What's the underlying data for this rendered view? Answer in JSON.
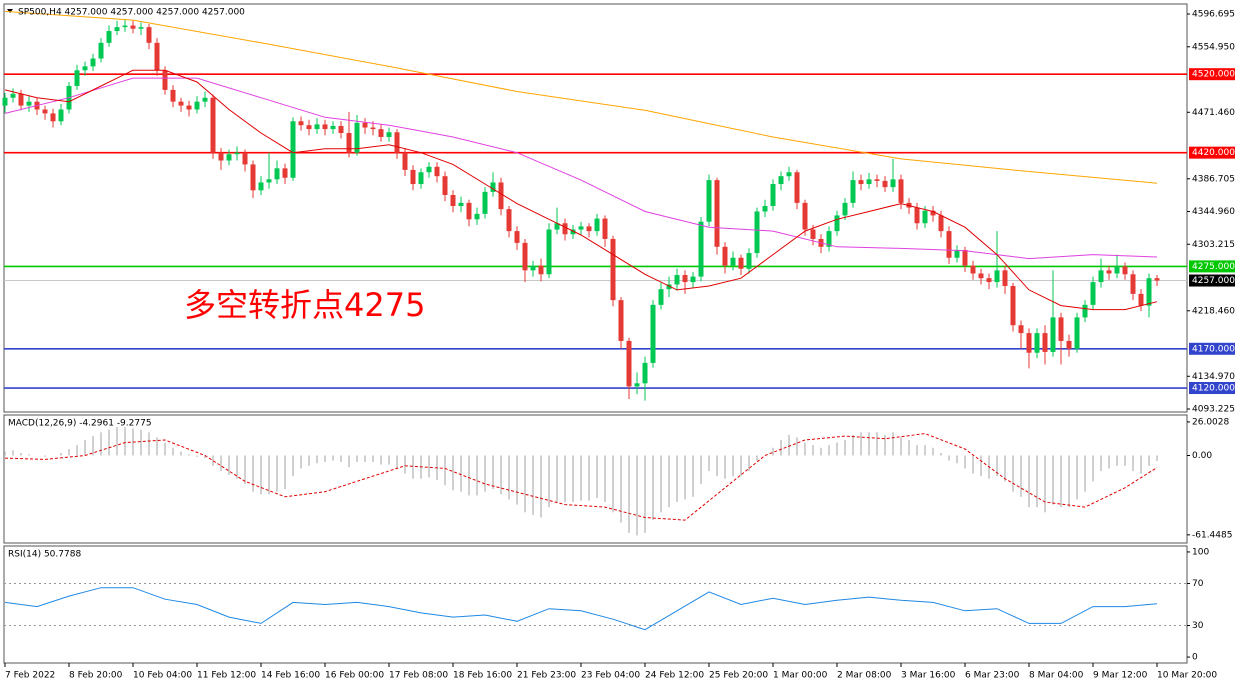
{
  "chart_data": [
    {
      "type": "candlestick",
      "title": "SP500,H4  4257.000 4257.000 4257.000 4257.000",
      "xlim": [
        -0.125,
        147.75
      ],
      "ylim": [
        4090.7,
        4608.2
      ],
      "yticks": [
        4596.695,
        {
          "value": 4554.95,
          "label": "4554.950"
        },
        {
          "value": 4471.46,
          "label": "4471.460"
        },
        4386.705,
        {
          "value": 4344.96,
          "label": "4344.960"
        },
        4303.215,
        {
          "value": 4218.46,
          "label": "4218.460"
        },
        {
          "value": 4134.97,
          "label": "4134.970"
        },
        4093.225
      ],
      "up_color": "#00c853",
      "down_color": "#e53935",
      "open": [
        4480,
        4490,
        4495,
        4480,
        4485,
        4475,
        4470,
        4460,
        4475,
        4505,
        4525,
        4530,
        4540,
        4560,
        4575,
        4580,
        4582,
        4578,
        4580,
        4560,
        4525,
        4500,
        4485,
        4480,
        4475,
        4485,
        4490,
        4420,
        4410,
        4418,
        4420,
        4405,
        4372,
        4382,
        4386,
        4400,
        4388,
        4460,
        4455,
        4450,
        4456,
        4450,
        4454,
        4445,
        4420,
        4458,
        4452,
        4450,
        4440,
        4446,
        4420,
        4398,
        4380,
        4395,
        4402,
        4390,
        4366,
        4352,
        4356,
        4335,
        4342,
        4370,
        4382,
        4348,
        4320,
        4305,
        4270,
        4276,
        4265,
        4322,
        4330,
        4316,
        4322,
        4326,
        4320,
        4336,
        4310,
        4232,
        4180,
        4122,
        4126,
        4152,
        4226,
        4246,
        4252,
        4264,
        4255,
        4262,
        4332,
        4385,
        4300,
        4276,
        4286,
        4272,
        4292,
        4345,
        4352,
        4380,
        4390,
        4395,
        4356,
        4322,
        4310,
        4300,
        4320,
        4340,
        4356,
        4385,
        4380,
        4386,
        4384,
        4376,
        4386,
        4356,
        4350,
        4330,
        4346,
        4340,
        4320,
        4286,
        4296,
        4276,
        4266,
        4260,
        4255,
        4270,
        4250,
        4200,
        4190,
        4165,
        4190,
        4166,
        4210,
        4180,
        4170,
        4210,
        4226,
        4255,
        4270,
        4266,
        4275,
        4265,
        4240,
        4225,
        4260
      ],
      "high": [
        4496,
        4502,
        4500,
        4492,
        4490,
        4480,
        4476,
        4482,
        4510,
        4532,
        4536,
        4546,
        4566,
        4582,
        4588,
        4590,
        4588,
        4586,
        4584,
        4566,
        4530,
        4506,
        4490,
        4486,
        4492,
        4498,
        4494,
        4426,
        4424,
        4428,
        4424,
        4410,
        4390,
        4420,
        4410,
        4406,
        4465,
        4466,
        4462,
        4464,
        4462,
        4460,
        4460,
        4472,
        4468,
        4464,
        4460,
        4456,
        4452,
        4450,
        4426,
        4404,
        4400,
        4408,
        4408,
        4396,
        4372,
        4364,
        4360,
        4350,
        4376,
        4395,
        4388,
        4352,
        4326,
        4310,
        4282,
        4285,
        4330,
        4350,
        4336,
        4328,
        4332,
        4330,
        4342,
        4340,
        4314,
        4236,
        4184,
        4140,
        4160,
        4232,
        4254,
        4262,
        4272,
        4270,
        4268,
        4338,
        4392,
        4388,
        4306,
        4294,
        4290,
        4298,
        4350,
        4360,
        4386,
        4396,
        4402,
        4398,
        4360,
        4328,
        4316,
        4326,
        4346,
        4362,
        4396,
        4392,
        4394,
        4392,
        4390,
        4412,
        4392,
        4362,
        4356,
        4352,
        4352,
        4346,
        4326,
        4302,
        4300,
        4282,
        4272,
        4266,
        4320,
        4276,
        4254,
        4206,
        4196,
        4196,
        4200,
        4270,
        4216,
        4188,
        4216,
        4232,
        4262,
        4285,
        4276,
        4290,
        4280,
        4270,
        4246,
        4266,
        4264
      ],
      "low": [
        4470,
        4484,
        4474,
        4472,
        4468,
        4462,
        4452,
        4455,
        4470,
        4500,
        4518,
        4524,
        4535,
        4555,
        4570,
        4574,
        4572,
        4570,
        4552,
        4518,
        4494,
        4478,
        4472,
        4466,
        4470,
        4478,
        4412,
        4398,
        4404,
        4410,
        4396,
        4362,
        4366,
        4374,
        4380,
        4380,
        4384,
        4448,
        4442,
        4444,
        4442,
        4444,
        4438,
        4414,
        4416,
        4444,
        4442,
        4434,
        4434,
        4412,
        4390,
        4372,
        4374,
        4388,
        4382,
        4358,
        4344,
        4344,
        4326,
        4328,
        4336,
        4364,
        4340,
        4312,
        4296,
        4255,
        4262,
        4256,
        4260,
        4316,
        4308,
        4310,
        4316,
        4312,
        4314,
        4300,
        4224,
        4170,
        4106,
        4112,
        4104,
        4146,
        4220,
        4236,
        4244,
        4240,
        4248,
        4256,
        4326,
        4290,
        4266,
        4270,
        4264,
        4266,
        4286,
        4338,
        4346,
        4372,
        4384,
        4348,
        4314,
        4302,
        4292,
        4294,
        4314,
        4334,
        4350,
        4372,
        4374,
        4376,
        4370,
        4370,
        4348,
        4342,
        4322,
        4324,
        4332,
        4312,
        4278,
        4280,
        4268,
        4258,
        4252,
        4246,
        4248,
        4240,
        4192,
        4170,
        4145,
        4158,
        4150,
        4160,
        4150,
        4160,
        4165,
        4204,
        4220,
        4248,
        4258,
        4260,
        4258,
        4232,
        4218,
        4210,
        4250
      ],
      "close": [
        4490,
        4495,
        4480,
        4485,
        4475,
        4470,
        4460,
        4475,
        4505,
        4525,
        4530,
        4540,
        4560,
        4575,
        4580,
        4582,
        4578,
        4580,
        4560,
        4525,
        4500,
        4485,
        4480,
        4475,
        4485,
        4490,
        4420,
        4410,
        4418,
        4420,
        4405,
        4372,
        4382,
        4386,
        4400,
        4388,
        4460,
        4455,
        4450,
        4456,
        4450,
        4454,
        4445,
        4420,
        4458,
        4452,
        4450,
        4440,
        4446,
        4420,
        4398,
        4380,
        4395,
        4402,
        4390,
        4366,
        4352,
        4356,
        4335,
        4342,
        4370,
        4382,
        4348,
        4320,
        4305,
        4270,
        4276,
        4265,
        4322,
        4330,
        4316,
        4322,
        4326,
        4320,
        4336,
        4310,
        4232,
        4180,
        4122,
        4126,
        4152,
        4226,
        4246,
        4252,
        4264,
        4255,
        4262,
        4332,
        4385,
        4300,
        4276,
        4286,
        4272,
        4292,
        4345,
        4352,
        4380,
        4390,
        4395,
        4356,
        4322,
        4310,
        4300,
        4320,
        4340,
        4356,
        4385,
        4380,
        4386,
        4384,
        4376,
        4386,
        4356,
        4350,
        4330,
        4346,
        4340,
        4320,
        4286,
        4296,
        4276,
        4266,
        4260,
        4255,
        4270,
        4250,
        4200,
        4190,
        4165,
        4190,
        4166,
        4210,
        4180,
        4170,
        4210,
        4226,
        4255,
        4270,
        4266,
        4275,
        4265,
        4240,
        4225,
        4260,
        4257
      ],
      "moving_averages": [
        {
          "color": "#ffa500",
          "x": [
            0,
            16,
            32,
            48,
            64,
            80,
            96,
            112,
            128,
            144
          ],
          "values": [
            4600,
            4589,
            4560,
            4530,
            4498,
            4474,
            4440,
            4412,
            4396,
            4381
          ]
        },
        {
          "color": "#e040e0",
          "x": [
            0,
            8,
            16,
            24,
            32,
            40,
            48,
            56,
            64,
            72,
            80,
            88,
            96,
            104,
            112,
            120,
            128,
            136,
            144
          ],
          "values": [
            4470,
            4490,
            4515,
            4515,
            4490,
            4465,
            4455,
            4440,
            4420,
            4385,
            4345,
            4325,
            4320,
            4300,
            4298,
            4295,
            4285,
            4290,
            4287
          ]
        },
        {
          "color": "#e00000",
          "x": [
            0,
            4,
            8,
            12,
            16,
            20,
            24,
            28,
            32,
            36,
            40,
            44,
            48,
            52,
            56,
            60,
            64,
            68,
            72,
            76,
            80,
            84,
            88,
            92,
            96,
            100,
            104,
            108,
            112,
            116,
            120,
            124,
            128,
            132,
            136,
            140,
            144
          ],
          "values": [
            4500,
            4490,
            4485,
            4505,
            4525,
            4525,
            4510,
            4475,
            4445,
            4420,
            4425,
            4425,
            4430,
            4420,
            4405,
            4380,
            4355,
            4335,
            4315,
            4290,
            4265,
            4245,
            4250,
            4260,
            4290,
            4320,
            4335,
            4345,
            4355,
            4345,
            4325,
            4290,
            4245,
            4225,
            4220,
            4220,
            4230
          ]
        }
      ],
      "levels": [
        {
          "value": 4520,
          "label": "4520.000",
          "color": "#ff0000"
        },
        {
          "value": 4420,
          "label": "4420.000",
          "color": "#ff0000"
        },
        {
          "value": 4275,
          "label": "4275.000",
          "color": "#00c800"
        },
        {
          "value": 4257,
          "label": "4257.000",
          "color": "#c8c8c8",
          "box_color": "#000000"
        },
        {
          "value": 4170,
          "label": "4170.000",
          "color": "#3344cc"
        },
        {
          "value": 4120,
          "label": "4120.000",
          "color": "#3344cc"
        }
      ],
      "annotation": "多空转折点4275",
      "annotation_color": "#ff0000"
    },
    {
      "type": "macd",
      "title": "MACD(12,26,9) -4.2961 -9.2775",
      "xlim": [
        -0.125,
        147.75
      ],
      "ylim": [
        -67,
        30.6
      ],
      "yticks": [
        26.0028,
        {
          "value": 0,
          "label": "0.00"
        },
        -61.4485
      ],
      "histogram": {
        "color": "#c0c0c0",
        "values": [
          3,
          4,
          2,
          1,
          0,
          -1,
          0,
          2,
          5,
          8,
          12,
          15,
          18,
          20,
          22,
          22,
          21,
          20,
          18,
          14,
          10,
          6,
          3,
          1,
          -1,
          -2,
          -8,
          -12,
          -15,
          -18,
          -22,
          -28,
          -30,
          -30,
          -28,
          -26,
          -16,
          -10,
          -8,
          -6,
          -5,
          -4,
          -5,
          -9,
          -5,
          -5,
          -5,
          -7,
          -7,
          -10,
          -14,
          -18,
          -18,
          -17,
          -19,
          -23,
          -27,
          -28,
          -31,
          -31,
          -28,
          -26,
          -30,
          -34,
          -38,
          -44,
          -46,
          -48,
          -40,
          -36,
          -36,
          -36,
          -35,
          -35,
          -33,
          -36,
          -44,
          -52,
          -60,
          -62,
          -60,
          -50,
          -44,
          -40,
          -36,
          -34,
          -32,
          -22,
          -12,
          -16,
          -18,
          -16,
          -16,
          -12,
          -4,
          0,
          6,
          12,
          16,
          14,
          10,
          8,
          6,
          8,
          10,
          12,
          16,
          18,
          18,
          18,
          16,
          18,
          14,
          12,
          8,
          8,
          6,
          2,
          -4,
          -6,
          -10,
          -14,
          -16,
          -18,
          -16,
          -20,
          -28,
          -32,
          -40,
          -40,
          -44,
          -38,
          -40,
          -40,
          -34,
          -28,
          -20,
          -12,
          -10,
          -8,
          -8,
          -12,
          -14,
          -8,
          -4.2961
        ]
      },
      "signal": {
        "color": "#e00000",
        "x": [
          0,
          5,
          10,
          15,
          20,
          25,
          30,
          35,
          40,
          45,
          50,
          55,
          60,
          65,
          70,
          75,
          80,
          85,
          90,
          95,
          100,
          105,
          110,
          115,
          120,
          125,
          130,
          135,
          140,
          144
        ],
        "values": [
          -2,
          -3,
          0,
          10,
          12,
          0,
          -20,
          -32,
          -28,
          -18,
          -8,
          -10,
          -22,
          -30,
          -38,
          -40,
          -48,
          -50,
          -25,
          0,
          12,
          15,
          13,
          17,
          5,
          -18,
          -36,
          -40,
          -25,
          -9.2775
        ]
      }
    },
    {
      "type": "line",
      "title": "RSI(14) 50.7788",
      "xlim": [
        -0.125,
        147.75
      ],
      "ylim": [
        -4.7,
        104.7
      ],
      "yticks": [
        100,
        70,
        30,
        0
      ],
      "levels": [
        70,
        30
      ],
      "color": "#1e88e5",
      "x": [
        0,
        4,
        8,
        12,
        16,
        20,
        24,
        28,
        32,
        36,
        40,
        44,
        48,
        52,
        56,
        60,
        64,
        68,
        72,
        76,
        80,
        84,
        88,
        92,
        96,
        100,
        104,
        108,
        112,
        116,
        120,
        124,
        128,
        132,
        136,
        140,
        144
      ],
      "values": [
        52,
        48,
        58,
        66,
        66,
        55,
        50,
        38,
        32,
        52,
        50,
        52,
        48,
        42,
        38,
        40,
        34,
        46,
        44,
        36,
        26,
        44,
        62,
        50,
        56,
        50,
        54,
        57,
        54,
        52,
        44,
        46,
        32,
        32,
        48,
        48,
        50.7788
      ],
      "xticks": [
        {
          "value": 0,
          "label": "7 Feb 2022"
        },
        {
          "value": 8,
          "label": "8 Feb 20:00"
        },
        {
          "value": 16,
          "label": "10 Feb 04:00"
        },
        {
          "value": 24,
          "label": "11 Feb 12:00"
        },
        {
          "value": 32,
          "label": "14 Feb 16:00"
        },
        {
          "value": 40,
          "label": "16 Feb 00:00"
        },
        {
          "value": 48,
          "label": "17 Feb 08:00"
        },
        {
          "value": 56,
          "label": "18 Feb 16:00"
        },
        {
          "value": 64,
          "label": "21 Feb 23:00"
        },
        {
          "value": 72,
          "label": "23 Feb 04:00"
        },
        {
          "value": 80,
          "label": "24 Feb 12:00"
        },
        {
          "value": 88,
          "label": "25 Feb 20:00"
        },
        {
          "value": 96,
          "label": "1 Mar 00:00"
        },
        {
          "value": 104,
          "label": "2 Mar 08:00"
        },
        {
          "value": 112,
          "label": "3 Mar 16:00"
        },
        {
          "value": 120,
          "label": "6 Mar 23:00"
        },
        {
          "value": 128,
          "label": "8 Mar 04:00"
        },
        {
          "value": 136,
          "label": "9 Mar 12:00"
        },
        {
          "value": 144,
          "label": "10 Mar 20:00"
        }
      ]
    }
  ]
}
